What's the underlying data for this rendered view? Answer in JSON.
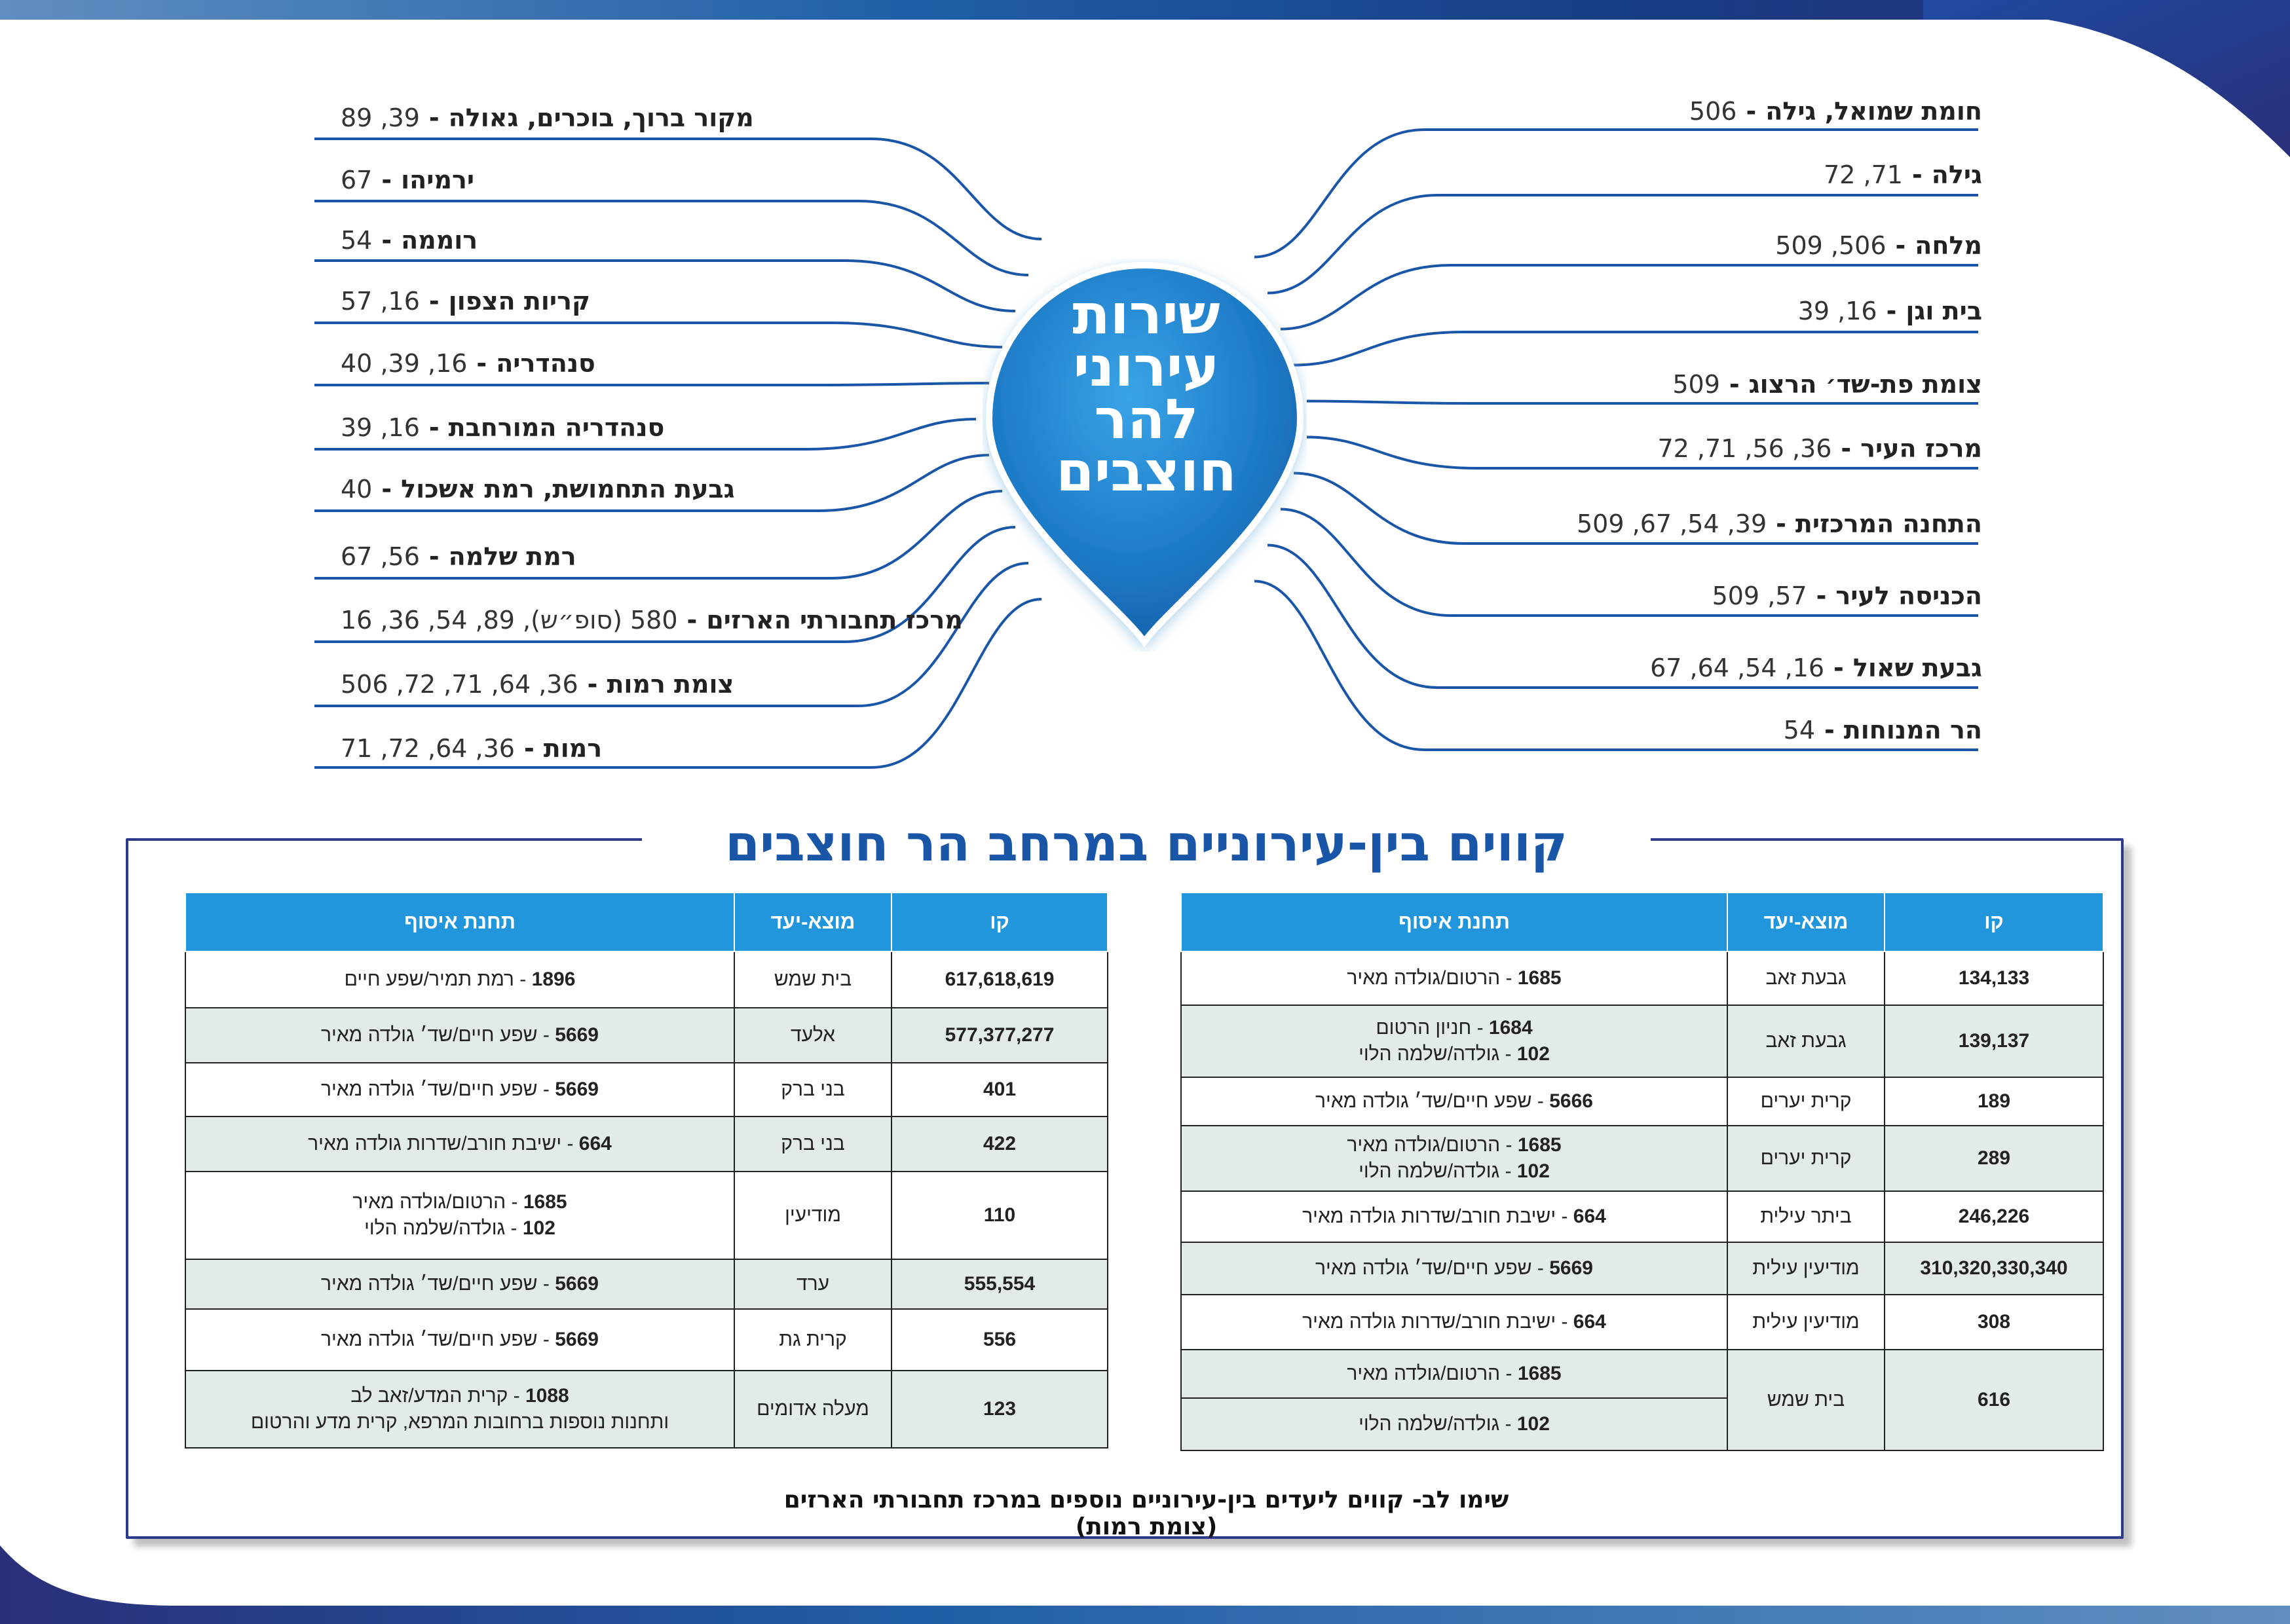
{
  "header": {
    "title_lines": [
      "שירות",
      "עירוני",
      "להר",
      "חוצבים"
    ]
  },
  "areas_left": [
    {
      "name": "מקור ברוך, בוכרים, גאולה",
      "lines": "39, 89"
    },
    {
      "name": "ירמיהו",
      "lines": "67"
    },
    {
      "name": "רוממה",
      "lines": "54"
    },
    {
      "name": "קריות הצפון",
      "lines": "16, 57"
    },
    {
      "name": "סנהדריה",
      "lines": "16, 39, 40"
    },
    {
      "name": "סנהדריה המורחבת",
      "lines": "16, 39"
    },
    {
      "name": "גבעת התחמושת, רמת אשכול",
      "lines": "40"
    },
    {
      "name": "רמת שלמה",
      "lines": "56, 67"
    },
    {
      "name": "מרכז תחבורתי הארזים",
      "lines": "580 (סופ״ש), 89, 54, 36, 16"
    },
    {
      "name": "צומת רמות",
      "lines": "36, 64, 71, 72, 506"
    },
    {
      "name": "רמות",
      "lines": "36, 64, 72, 71"
    }
  ],
  "areas_right": [
    {
      "name": "חומת שמואל, גילה",
      "lines": "506"
    },
    {
      "name": "גילה",
      "lines": "71, 72"
    },
    {
      "name": "מלחה",
      "lines": "506, 509"
    },
    {
      "name": "בית וגן",
      "lines": "16, 39"
    },
    {
      "name": "צומת פת-שד׳ הרצוג",
      "lines": "509"
    },
    {
      "name": "מרכז העיר",
      "lines": "36, 56, 71, 72"
    },
    {
      "name": "התחנה המרכזית",
      "lines": "39, 54, 67, 509"
    },
    {
      "name": "הכניסה לעיר",
      "lines": "57, 509"
    },
    {
      "name": "גבעת שאול",
      "lines": "16, 54, 64, 67"
    },
    {
      "name": "הר המנוחות",
      "lines": "54"
    }
  ],
  "section": {
    "title": "קווים בין-עירוניים במרחב הר חוצבים",
    "note": "שימו לב- קווים ליעדים בין-עירוניים נוספים במרכז תחבורתי הארזים (צומת רמות)"
  },
  "table_headers": {
    "line": "קו",
    "destination": "מוצא-יעד",
    "stop": "תחנת איסוף"
  },
  "table_right": [
    {
      "line": "134,133",
      "destination": "גבעת זאב",
      "stops": [
        {
          "code": "1685",
          "text": "הרטום/גולדה מאיר"
        }
      ]
    },
    {
      "line": "139,137",
      "destination": "גבעת זאב",
      "stops": [
        {
          "code": "1684",
          "text": "חניון הרטום"
        },
        {
          "code": "102",
          "text": "גולדה/שלמה הלוי"
        }
      ]
    },
    {
      "line": "189",
      "destination": "קרית יערים",
      "stops": [
        {
          "code": "5666",
          "text": "שפע חיים/שד׳ גולדה מאיר"
        }
      ]
    },
    {
      "line": "289",
      "destination": "קרית יערים",
      "stops": [
        {
          "code": "1685",
          "text": "הרטום/גולדה מאיר"
        },
        {
          "code": "102",
          "text": "גולדה/שלמה הלוי"
        }
      ]
    },
    {
      "line": "246,226",
      "destination": "ביתר עילית",
      "stops": [
        {
          "code": "664",
          "text": "ישיבת חורב/שדרות גולדה מאיר"
        }
      ]
    },
    {
      "line": "310,320,330,340",
      "destination": "מודיעין עילית",
      "stops": [
        {
          "code": "5669",
          "text": "שפע חיים/שד׳ גולדה מאיר"
        }
      ]
    },
    {
      "line": "308",
      "destination": "מודיעין עילית",
      "stops": [
        {
          "code": "664",
          "text": "ישיבת חורב/שדרות גולדה מאיר"
        }
      ]
    },
    {
      "line": "616",
      "destination": "בית שמש",
      "stops": [
        {
          "code": "1685",
          "text": "הרטום/גולדה מאיר"
        }
      ],
      "split_second": {
        "code": "102",
        "text": "גולדה/שלמה הלוי"
      }
    }
  ],
  "table_left": [
    {
      "line": "617,618,619",
      "destination": "בית שמש",
      "stops": [
        {
          "code": "1896",
          "text": "רמת תמיר/שפע חיים"
        }
      ]
    },
    {
      "line": "577,377,277",
      "destination": "אלעד",
      "stops": [
        {
          "code": "5669",
          "text": "שפע חיים/שד׳ גולדה מאיר"
        }
      ]
    },
    {
      "line": "401",
      "destination": "בני ברק",
      "stops": [
        {
          "code": "5669",
          "text": "שפע חיים/שד׳ גולדה מאיר"
        }
      ]
    },
    {
      "line": "422",
      "destination": "בני ברק",
      "stops": [
        {
          "code": "664",
          "text": "ישיבת חורב/שדרות גולדה מאיר"
        }
      ]
    },
    {
      "line": "110",
      "destination": "מודיעין",
      "stops": [
        {
          "code": "1685",
          "text": "הרטום/גולדה מאיר"
        },
        {
          "code": "102",
          "text": "גולדה/שלמה הלוי"
        }
      ]
    },
    {
      "line": "555,554",
      "destination": "ערד",
      "stops": [
        {
          "code": "5669",
          "text": "שפע חיים/שד׳ גולדה מאיר"
        }
      ]
    },
    {
      "line": "556",
      "destination": "קרית גת",
      "stops": [
        {
          "code": "5669",
          "text": "שפע חיים/שד׳ גולדה מאיר"
        }
      ]
    },
    {
      "line": "123",
      "destination": "מעלה אדומים",
      "stops": [
        {
          "code": "1088",
          "text": "קרית המדע/זאב לב"
        },
        {
          "code": "",
          "text": "ותחנות נוספות ברחובות המרפא, קרית מדע והרטום"
        }
      ]
    }
  ],
  "colors": {
    "accent": "#1a56a8",
    "header_bg": "#2196dc",
    "row_alt": "#e3ebe7",
    "frame": "#2b3a8a"
  }
}
